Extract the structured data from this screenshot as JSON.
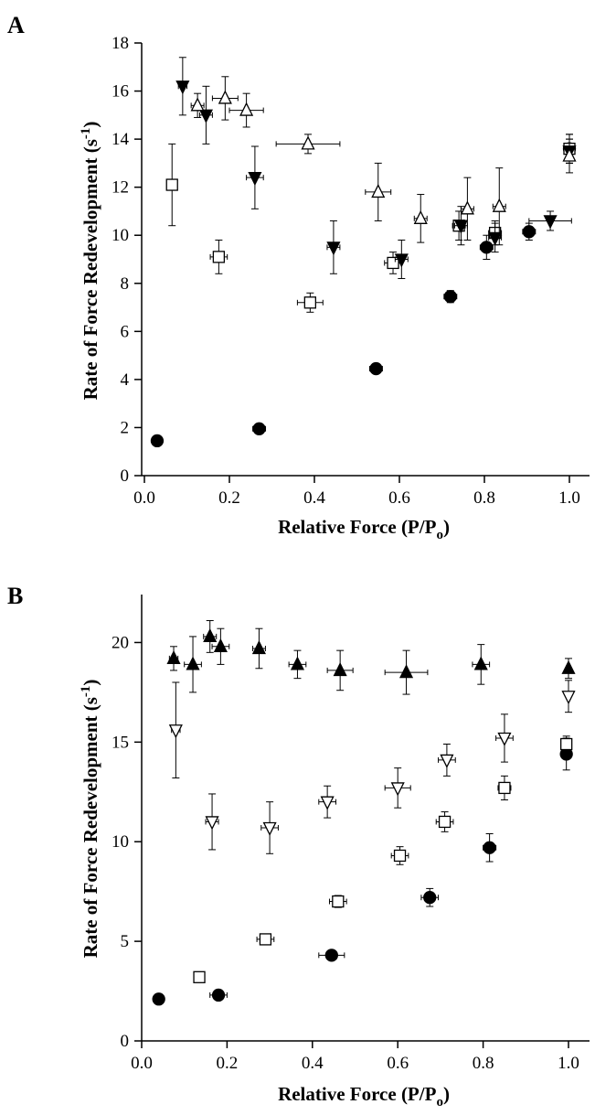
{
  "chart_data": [
    {
      "panel": "A",
      "type": "scatter",
      "xlabel": "Relative Force (P/P",
      "xlabel_sub": "o",
      "xlabel_close": ")",
      "ylabel": "Rate of Force Redevelopment (s",
      "ylabel_sup": "-1",
      "ylabel_close": ")",
      "xlim": [
        0,
        1.1
      ],
      "ylim": [
        0,
        18
      ],
      "xticks": [
        "0.0",
        "0.2",
        "0.4",
        "0.6",
        "0.8",
        "1.0"
      ],
      "xtick_values": [
        0,
        0.2,
        0.4,
        0.6,
        0.8,
        1.0
      ],
      "yticks": [
        "0",
        "2",
        "4",
        "6",
        "8",
        "10",
        "12",
        "14",
        "16",
        "18"
      ],
      "ytick_values": [
        0,
        2,
        4,
        6,
        8,
        10,
        12,
        14,
        16,
        18
      ],
      "series": [
        {
          "marker": "circle-filled",
          "points": [
            {
              "x": 0.03,
              "y": 1.45,
              "xerr": 0.005,
              "yerr": 0.1
            },
            {
              "x": 0.27,
              "y": 1.95,
              "xerr": 0.015,
              "yerr": 0.1
            },
            {
              "x": 0.545,
              "y": 4.45,
              "xerr": 0.015,
              "yerr": 0.2
            },
            {
              "x": 0.72,
              "y": 7.45,
              "xerr": 0.015,
              "yerr": 0.25
            },
            {
              "x": 0.805,
              "y": 9.5,
              "xerr": 0.015,
              "yerr": 0.5
            },
            {
              "x": 0.905,
              "y": 10.15,
              "xerr": 0.015,
              "yerr": 0.35
            },
            {
              "x": 1.0,
              "y": 13.6,
              "xerr": 0.005,
              "yerr": 0.6
            }
          ]
        },
        {
          "marker": "square-open",
          "points": [
            {
              "x": 0.065,
              "y": 12.1,
              "xerr": 0.01,
              "yerr": 1.7
            },
            {
              "x": 0.175,
              "y": 9.1,
              "xerr": 0.02,
              "yerr": 0.7
            },
            {
              "x": 0.39,
              "y": 7.2,
              "xerr": 0.03,
              "yerr": 0.4
            },
            {
              "x": 0.585,
              "y": 8.85,
              "xerr": 0.02,
              "yerr": 0.45
            },
            {
              "x": 0.74,
              "y": 10.4,
              "xerr": 0.015,
              "yerr": 0.6
            },
            {
              "x": 0.825,
              "y": 10.1,
              "xerr": 0.015,
              "yerr": 0.5
            },
            {
              "x": 1.0,
              "y": 13.6,
              "xerr": 0.005,
              "yerr": 0.6
            }
          ]
        },
        {
          "marker": "triangle-down-filled",
          "points": [
            {
              "x": 0.09,
              "y": 16.2,
              "xerr": 0.01,
              "yerr": 1.2
            },
            {
              "x": 0.145,
              "y": 15.0,
              "xerr": 0.015,
              "yerr": 1.2
            },
            {
              "x": 0.26,
              "y": 12.4,
              "xerr": 0.02,
              "yerr": 1.3
            },
            {
              "x": 0.445,
              "y": 9.5,
              "xerr": 0.015,
              "yerr": 1.1
            },
            {
              "x": 0.605,
              "y": 9.0,
              "xerr": 0.015,
              "yerr": 0.8
            },
            {
              "x": 0.745,
              "y": 10.4,
              "xerr": 0.015,
              "yerr": 0.8
            },
            {
              "x": 0.825,
              "y": 9.9,
              "xerr": 0.015,
              "yerr": 0.6
            },
            {
              "x": 0.955,
              "y": 10.6,
              "xerr": 0.05,
              "yerr": 0.4
            },
            {
              "x": 1.0,
              "y": 13.5,
              "xerr": 0.005,
              "yerr": 0.5
            }
          ]
        },
        {
          "marker": "triangle-up-open",
          "points": [
            {
              "x": 0.125,
              "y": 15.4,
              "xerr": 0.015,
              "yerr": 0.5
            },
            {
              "x": 0.19,
              "y": 15.7,
              "xerr": 0.03,
              "yerr": 0.9
            },
            {
              "x": 0.24,
              "y": 15.2,
              "xerr": 0.04,
              "yerr": 0.7
            },
            {
              "x": 0.385,
              "y": 13.8,
              "xerr": 0.075,
              "yerr": 0.4
            },
            {
              "x": 0.55,
              "y": 11.8,
              "xerr": 0.03,
              "yerr": 1.2
            },
            {
              "x": 0.65,
              "y": 10.7,
              "xerr": 0.015,
              "yerr": 1.0
            },
            {
              "x": 0.76,
              "y": 11.1,
              "xerr": 0.015,
              "yerr": 1.3
            },
            {
              "x": 0.835,
              "y": 11.2,
              "xerr": 0.015,
              "yerr": 1.6
            },
            {
              "x": 1.0,
              "y": 13.3,
              "xerr": 0.005,
              "yerr": 0.7
            }
          ]
        }
      ]
    },
    {
      "panel": "B",
      "type": "scatter",
      "xlabel": "Relative Force (P/P",
      "xlabel_sub": "o",
      "xlabel_close": ")",
      "ylabel": "Rate of Force Redevelopment (s",
      "ylabel_sup": "-1",
      "ylabel_close": ")",
      "xlim": [
        0,
        1.1
      ],
      "ylim": [
        0,
        22.5
      ],
      "xticks": [
        "0.0",
        "0.2",
        "0.4",
        "0.6",
        "0.8",
        "1.0"
      ],
      "xtick_values": [
        0,
        0.2,
        0.4,
        0.6,
        0.8,
        1.0
      ],
      "yticks": [
        "0",
        "5",
        "10",
        "15",
        "20"
      ],
      "ytick_values": [
        0,
        5,
        10,
        15,
        20
      ],
      "series": [
        {
          "marker": "circle-filled",
          "points": [
            {
              "x": 0.04,
              "y": 2.1,
              "xerr": 0.01,
              "yerr": 0.2
            },
            {
              "x": 0.18,
              "y": 2.3,
              "xerr": 0.02,
              "yerr": 0.15
            },
            {
              "x": 0.445,
              "y": 4.3,
              "xerr": 0.03,
              "yerr": 0.15
            },
            {
              "x": 0.675,
              "y": 7.2,
              "xerr": 0.02,
              "yerr": 0.45
            },
            {
              "x": 0.815,
              "y": 9.7,
              "xerr": 0.015,
              "yerr": 0.7
            },
            {
              "x": 0.995,
              "y": 14.4,
              "xerr": 0.005,
              "yerr": 0.8
            }
          ]
        },
        {
          "marker": "square-open",
          "points": [
            {
              "x": 0.135,
              "y": 3.2,
              "xerr": 0.01,
              "yerr": 0.1
            },
            {
              "x": 0.29,
              "y": 5.1,
              "xerr": 0.02,
              "yerr": 0.2
            },
            {
              "x": 0.46,
              "y": 7.0,
              "xerr": 0.02,
              "yerr": 0.3
            },
            {
              "x": 0.605,
              "y": 9.3,
              "xerr": 0.02,
              "yerr": 0.45
            },
            {
              "x": 0.71,
              "y": 11.0,
              "xerr": 0.02,
              "yerr": 0.5
            },
            {
              "x": 0.85,
              "y": 12.7,
              "xerr": 0.015,
              "yerr": 0.6
            },
            {
              "x": 0.995,
              "y": 14.9,
              "xerr": 0.005,
              "yerr": 0.4
            }
          ]
        },
        {
          "marker": "triangle-down-open",
          "points": [
            {
              "x": 0.08,
              "y": 15.6,
              "xerr": 0.01,
              "yerr": 2.4
            },
            {
              "x": 0.165,
              "y": 11.0,
              "xerr": 0.015,
              "yerr": 1.4
            },
            {
              "x": 0.3,
              "y": 10.7,
              "xerr": 0.02,
              "yerr": 1.3
            },
            {
              "x": 0.435,
              "y": 12.0,
              "xerr": 0.02,
              "yerr": 0.8
            },
            {
              "x": 0.6,
              "y": 12.7,
              "xerr": 0.03,
              "yerr": 1.0
            },
            {
              "x": 0.715,
              "y": 14.1,
              "xerr": 0.02,
              "yerr": 0.8
            },
            {
              "x": 0.85,
              "y": 15.2,
              "xerr": 0.02,
              "yerr": 1.2
            },
            {
              "x": 1.0,
              "y": 17.3,
              "xerr": 0.005,
              "yerr": 0.8
            }
          ]
        },
        {
          "marker": "triangle-up-filled",
          "points": [
            {
              "x": 0.075,
              "y": 19.2,
              "xerr": 0.01,
              "yerr": 0.6
            },
            {
              "x": 0.12,
              "y": 18.9,
              "xerr": 0.02,
              "yerr": 1.4
            },
            {
              "x": 0.16,
              "y": 20.3,
              "xerr": 0.015,
              "yerr": 0.8
            },
            {
              "x": 0.185,
              "y": 19.8,
              "xerr": 0.02,
              "yerr": 0.9
            },
            {
              "x": 0.275,
              "y": 19.7,
              "xerr": 0.015,
              "yerr": 1.0
            },
            {
              "x": 0.365,
              "y": 18.9,
              "xerr": 0.02,
              "yerr": 0.7
            },
            {
              "x": 0.465,
              "y": 18.6,
              "xerr": 0.03,
              "yerr": 1.0
            },
            {
              "x": 0.62,
              "y": 18.5,
              "xerr": 0.05,
              "yerr": 1.1
            },
            {
              "x": 0.795,
              "y": 18.9,
              "xerr": 0.02,
              "yerr": 1.0
            },
            {
              "x": 1.0,
              "y": 18.7,
              "xerr": 0.005,
              "yerr": 0.5
            }
          ]
        }
      ]
    }
  ]
}
